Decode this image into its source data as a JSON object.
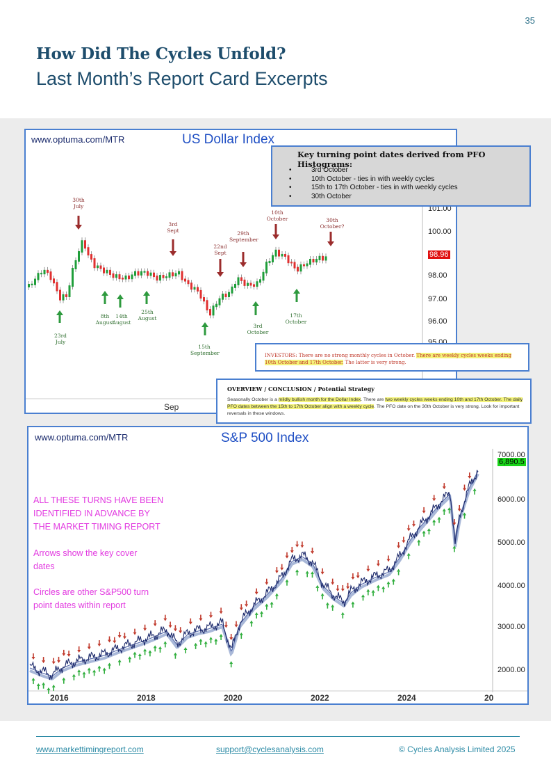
{
  "page": {
    "number": "35",
    "title": "How Did The Cycles Unfold?",
    "subtitle": "Last Month’s Report Card Excerpts"
  },
  "dollar_chart": {
    "url": "www.optuma.com/MTR",
    "title": "US Dollar Index",
    "x_label": "Sep",
    "y_ticks": [
      "101.00",
      "100.00",
      "98.00",
      "97.00",
      "96.00",
      "95.00"
    ],
    "last_price": "98.96",
    "last_price_color": "#e01010",
    "red_arrows": [
      {
        "label": "30th\nJuly"
      },
      {
        "label": "3rd\nSept"
      },
      {
        "label": "22nd\nSept"
      },
      {
        "label": "29th\nSeptember"
      },
      {
        "label": "10th\nOctober"
      },
      {
        "label": "30th\nOctober?"
      }
    ],
    "green_arrows": [
      {
        "label": "23rd\nJuly"
      },
      {
        "label": "8th\nAugust"
      },
      {
        "label": "14th\nAugust"
      },
      {
        "label": "25th\nAugust"
      },
      {
        "label": "15th\nSeptember"
      },
      {
        "label": "3rd\nOctober"
      },
      {
        "label": "17th\nOctober"
      }
    ],
    "key_turning_points": {
      "heading": "Key turning point dates derived from PFO Histograms:",
      "items": [
        "3rd October",
        "10th October - ties in with weekly cycles",
        "15th to 17th October - ties in with weekly cycles",
        "30th October"
      ]
    },
    "investors_note": {
      "plain": "INVESTORS: There are no strong monthly cycles in October. ",
      "highlight": "There are weekly cycles weeks ending 10th October and 17th October.",
      "tail": " The latter is very strong."
    },
    "overview": {
      "heading": "OVERVIEW / CONCLUSION / Potential Strategy",
      "p1": "Seasonally October is a ",
      "h1": "mildly bullish month for the Dollar Index",
      "p2": ". There are ",
      "h2": "two weekly cycles weeks ending 10th and 17th October. The daily PFO dates between the 15th to 17th October align with a weekly cycle",
      "p3": ". The PFO date on the 30th October is very strong. Look for important reversals in these windows."
    }
  },
  "sp500_chart": {
    "url": "www.optuma.com/MTR",
    "title": "S&P 500 Index",
    "x_ticks": [
      "2016",
      "2018",
      "2020",
      "2022",
      "2024",
      "20"
    ],
    "y_ticks": [
      "7000.00",
      "6000.00",
      "5000.00",
      "4000.00",
      "3000.00",
      "2000.00"
    ],
    "last_price": "6,890.5",
    "last_price_color": "#19d419",
    "annotation_1": [
      "ALL THESE TURNS HAVE BEEN",
      "IDENTIFIED IN ADVANCE BY",
      "THE MARKET TIMING REPORT"
    ],
    "annotation_2": [
      "Arrows show the key cover",
      "dates"
    ],
    "annotation_3": [
      "Circles are other S&P500 turn",
      "point dates within report"
    ]
  },
  "footer": {
    "website": "www.markettimingreport.com",
    "email": "support@cyclesanalysis.com",
    "copyright": "© Cycles Analysis Limited 2025"
  }
}
